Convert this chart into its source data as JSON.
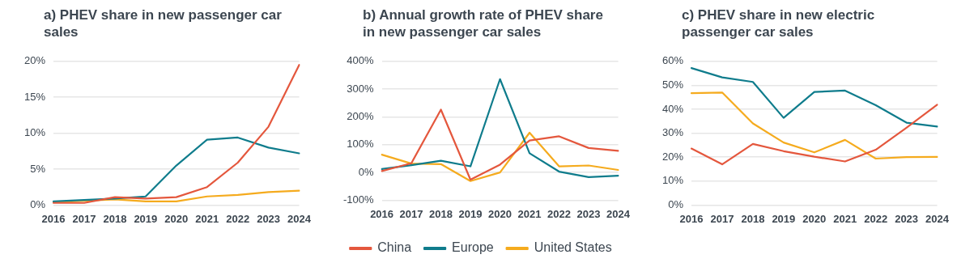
{
  "chart_data": [
    {
      "type": "line",
      "title": "a) PHEV share in new passenger car sales",
      "categories": [
        "2016",
        "2017",
        "2018",
        "2019",
        "2020",
        "2021",
        "2022",
        "2023",
        "2024"
      ],
      "series": [
        {
          "color": "#e4573d",
          "values": [
            0.3,
            0.3,
            1.1,
            0.9,
            1.1,
            2.5,
            5.9,
            10.9,
            19.5
          ]
        },
        {
          "color": "#0f7c8c",
          "values": [
            0.5,
            0.7,
            0.9,
            1.2,
            5.5,
            9.1,
            9.4,
            8.0,
            7.2
          ]
        },
        {
          "color": "#f5ab1e",
          "values": [
            0.4,
            0.6,
            0.8,
            0.5,
            0.5,
            1.2,
            1.4,
            1.8,
            2.0
          ]
        }
      ],
      "ylim": [
        0,
        20
      ],
      "yticks": [
        {
          "value": 0,
          "label": "0%"
        },
        {
          "value": 5,
          "label": "5%"
        },
        {
          "value": 10,
          "label": "10%"
        },
        {
          "value": 15,
          "label": "15%"
        },
        {
          "value": 20,
          "label": "20%"
        }
      ],
      "grid": "y",
      "legend": false,
      "marker": "none",
      "line_style": "solid"
    },
    {
      "type": "line",
      "title": "b) Annual growth rate of PHEV share in new passenger car sales",
      "categories": [
        "2016",
        "2017",
        "2018",
        "2019",
        "2020",
        "2021",
        "2022",
        "2023",
        "2024"
      ],
      "series": [
        {
          "name": "China",
          "color": "#e4573d",
          "values": [
            5,
            33,
            226,
            -26,
            28,
            115,
            130,
            88,
            78
          ]
        },
        {
          "name": "Europe",
          "color": "#0f7c8c",
          "values": [
            12,
            26,
            42,
            22,
            336,
            69,
            3,
            -17,
            -12
          ]
        },
        {
          "name": "United States",
          "color": "#f5ab1e",
          "values": [
            64,
            32,
            30,
            -31,
            0,
            143,
            22,
            25,
            9
          ]
        }
      ],
      "ylim": [
        -100,
        400
      ],
      "yticks": [
        {
          "value": -100,
          "label": "-100%"
        },
        {
          "value": 0,
          "label": "0%"
        },
        {
          "value": 100,
          "label": "100%"
        },
        {
          "value": 200,
          "label": "200%"
        },
        {
          "value": 300,
          "label": "300%"
        },
        {
          "value": 400,
          "label": "400%"
        }
      ],
      "grid": "y",
      "legend": "bottom",
      "marker": "none",
      "line_style": "solid"
    },
    {
      "type": "line",
      "title": "c) PHEV share in new electric passenger car sales",
      "categories": [
        "2016",
        "2017",
        "2018",
        "2019",
        "2020",
        "2021",
        "2022",
        "2023",
        "2024"
      ],
      "series": [
        {
          "color": "#e4573d",
          "values": [
            23.6,
            17.0,
            25.5,
            22.5,
            20.2,
            18.2,
            23.1,
            32.3,
            41.9
          ]
        },
        {
          "color": "#0f7c8c",
          "values": [
            57.2,
            53.3,
            51.4,
            36.4,
            47.2,
            47.8,
            41.7,
            34.4,
            32.8
          ]
        },
        {
          "color": "#f5ab1e",
          "values": [
            46.7,
            47.0,
            34.1,
            26.1,
            22.0,
            27.2,
            19.4,
            20.0,
            20.1
          ]
        }
      ],
      "ylim": [
        0,
        60
      ],
      "yticks": [
        {
          "value": 0,
          "label": "0%"
        },
        {
          "value": 10,
          "label": "10%"
        },
        {
          "value": 20,
          "label": "20%"
        },
        {
          "value": 30,
          "label": "30%"
        },
        {
          "value": 40,
          "label": "40%"
        },
        {
          "value": 50,
          "label": "50%"
        },
        {
          "value": 60,
          "label": "60%"
        }
      ],
      "grid": "y",
      "legend": false,
      "marker": "none",
      "line_style": "solid"
    }
  ]
}
